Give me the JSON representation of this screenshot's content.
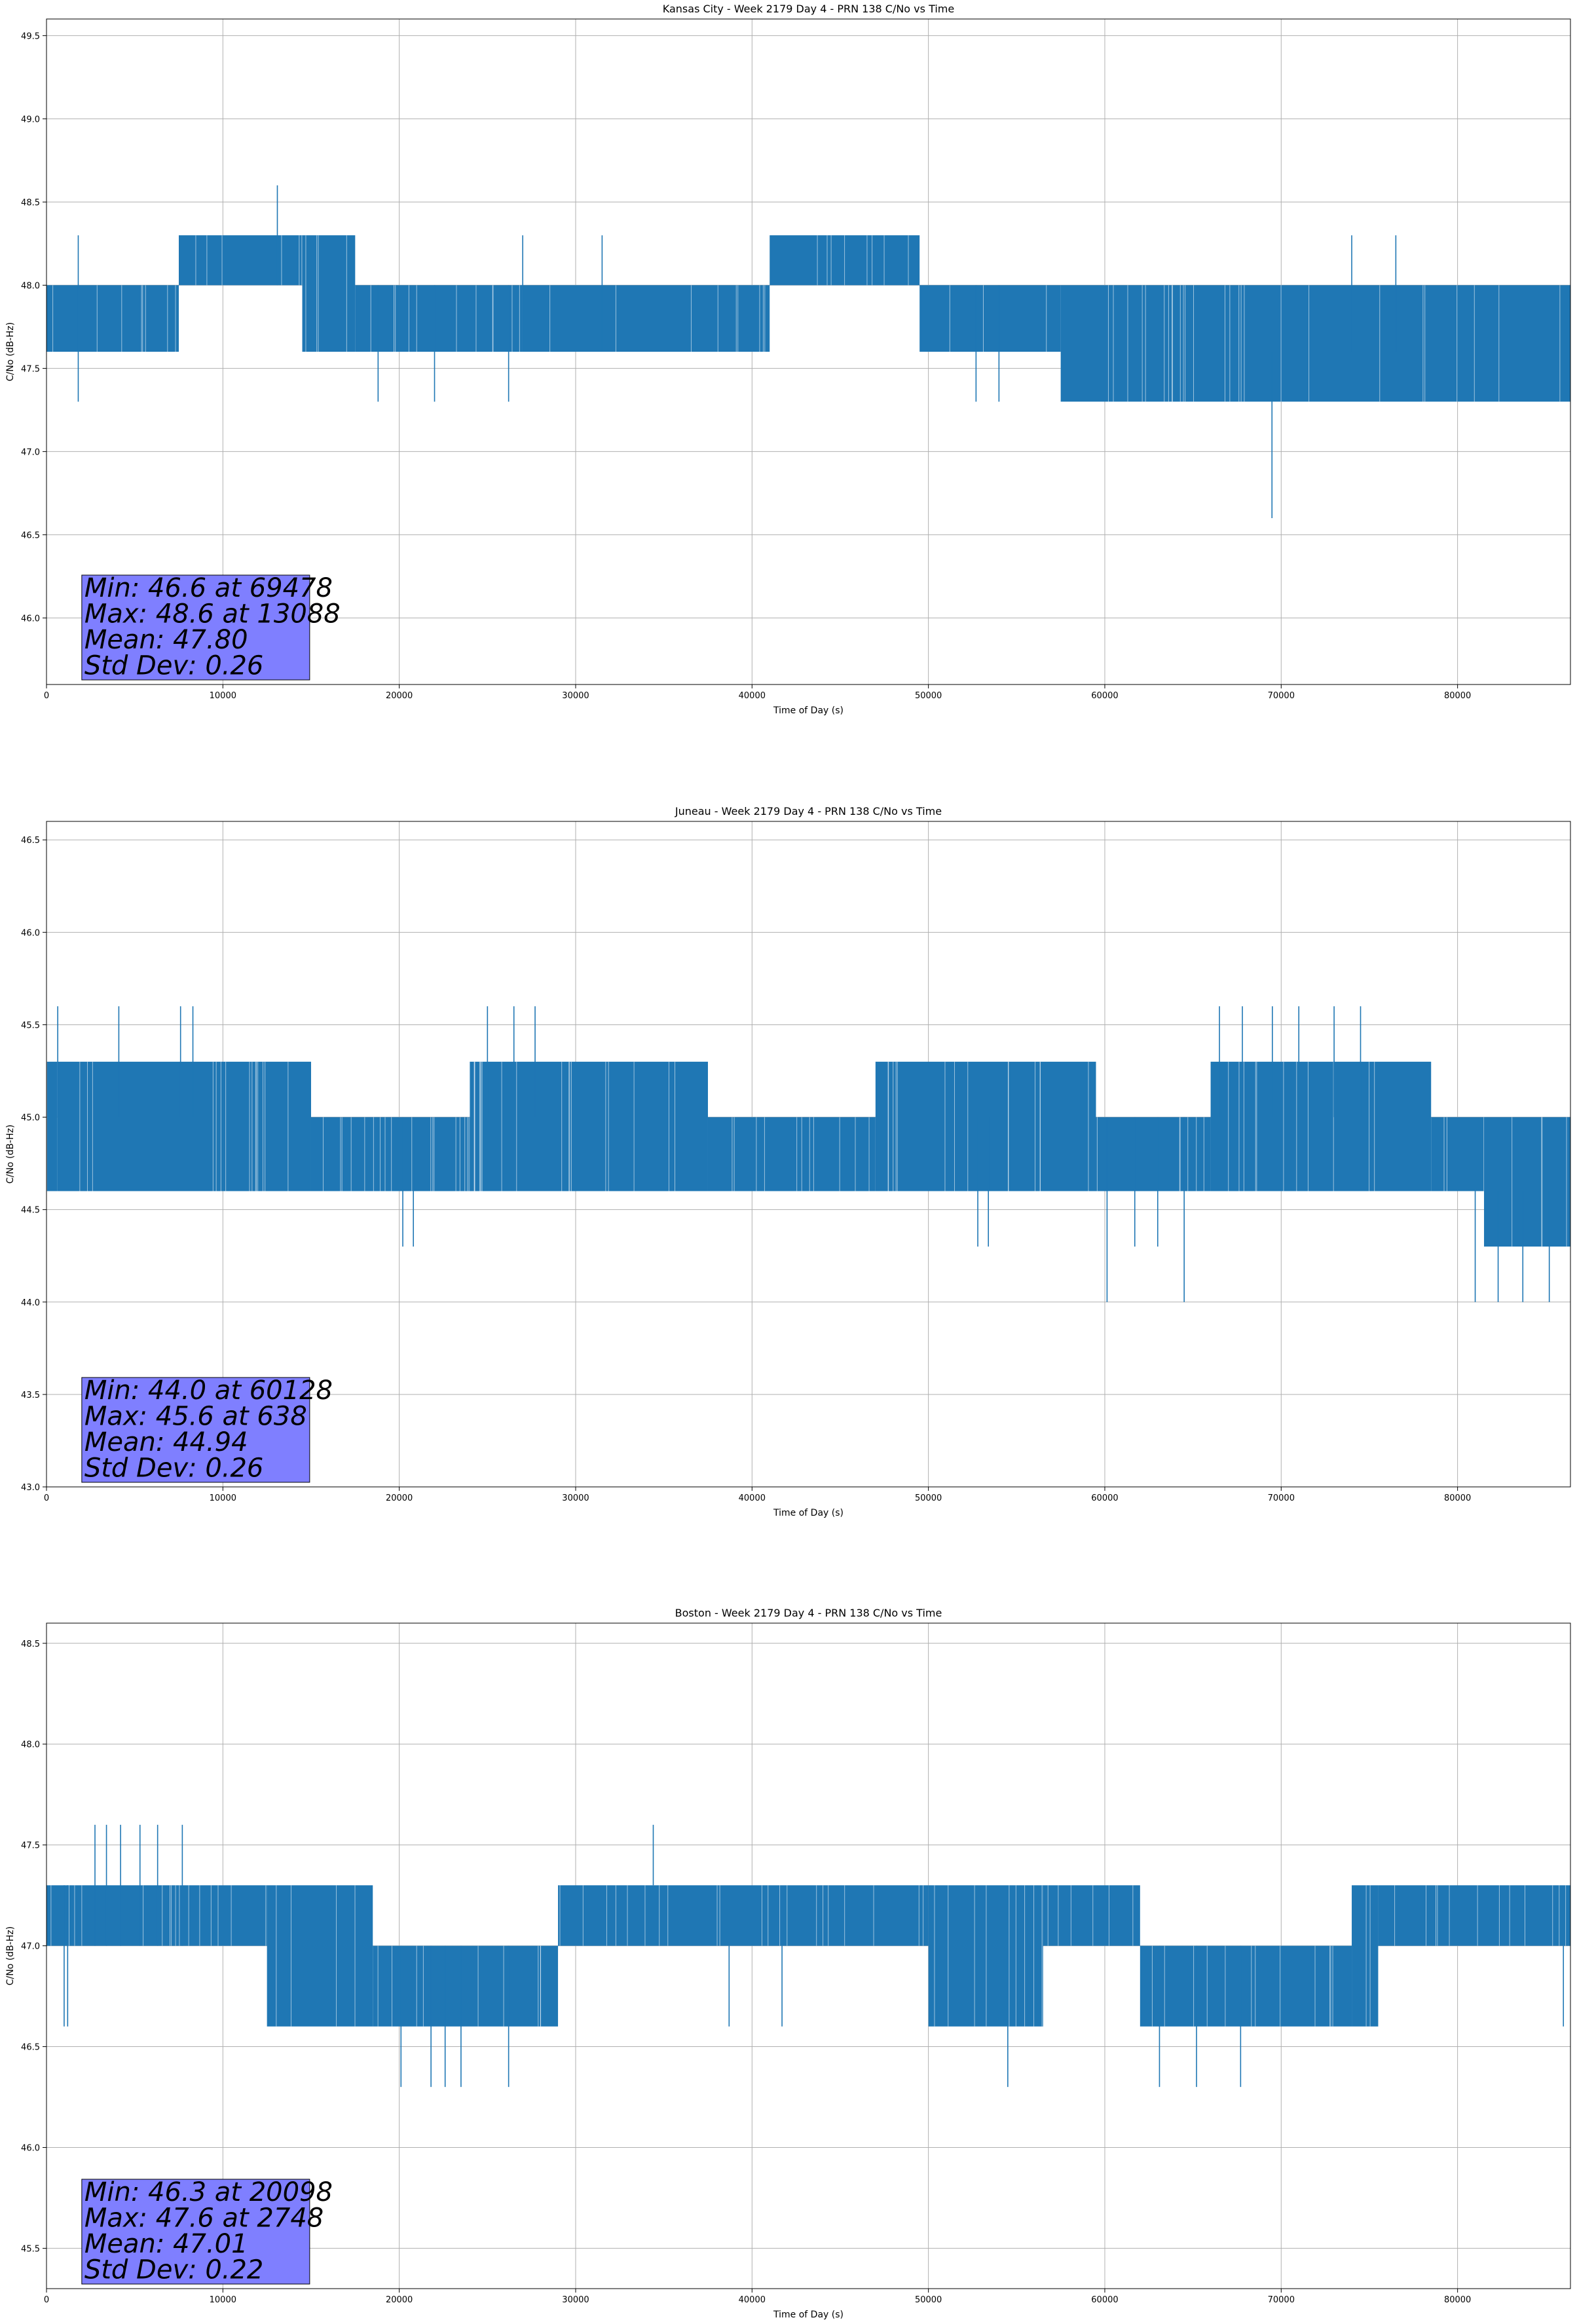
{
  "chart_data": [
    {
      "type": "line",
      "title": "Kansas City - Week 2179 Day 4 - PRN 138 C/No vs Time",
      "xlabel": "Time of Day (s)",
      "ylabel": "C/No (dB-Hz)",
      "xlim": [
        0,
        86400
      ],
      "ylim": [
        45.6,
        49.6
      ],
      "xticks": [
        0,
        10000,
        20000,
        30000,
        40000,
        50000,
        60000,
        70000,
        80000
      ],
      "yticks": [
        "46.0",
        "46.5",
        "47.0",
        "47.5",
        "48.0",
        "48.5",
        "49.0",
        "49.5"
      ],
      "grid": true,
      "color": "#1f77b4",
      "stats": [
        "Min: 46.6 at 69478",
        "Max: 48.6 at 13088",
        "Mean: 47.80",
        "Std Dev: 0.26"
      ],
      "series": [
        {
          "bands": [
            {
              "x0": 0,
              "x1": 7500,
              "lo": 47.6,
              "hi": 48.0
            },
            {
              "x0": 7500,
              "x1": 14500,
              "lo": 48.0,
              "hi": 48.3
            },
            {
              "x0": 14500,
              "x1": 17500,
              "lo": 47.6,
              "hi": 48.3
            },
            {
              "x0": 17500,
              "x1": 41000,
              "lo": 47.6,
              "hi": 48.0
            },
            {
              "x0": 41000,
              "x1": 49500,
              "lo": 48.0,
              "hi": 48.3
            },
            {
              "x0": 49500,
              "x1": 57500,
              "lo": 47.6,
              "hi": 48.0
            },
            {
              "x0": 57500,
              "x1": 86400,
              "lo": 47.3,
              "hi": 48.0
            }
          ],
          "spikes": [
            {
              "x": 1800,
              "lo": 47.3,
              "hi": 48.3
            },
            {
              "x": 13088,
              "lo": 48.0,
              "hi": 48.6
            },
            {
              "x": 18800,
              "lo": 47.3,
              "hi": 48.0
            },
            {
              "x": 22000,
              "lo": 47.3,
              "hi": 48.0
            },
            {
              "x": 26200,
              "lo": 47.3,
              "hi": 48.0
            },
            {
              "x": 27000,
              "lo": 47.6,
              "hi": 48.3
            },
            {
              "x": 31500,
              "lo": 47.6,
              "hi": 48.3
            },
            {
              "x": 52700,
              "lo": 47.3,
              "hi": 48.0
            },
            {
              "x": 54000,
              "lo": 47.3,
              "hi": 48.0
            },
            {
              "x": 69478,
              "lo": 46.6,
              "hi": 47.6
            },
            {
              "x": 74000,
              "lo": 47.6,
              "hi": 48.3
            },
            {
              "x": 76500,
              "lo": 47.6,
              "hi": 48.3
            }
          ]
        }
      ]
    },
    {
      "type": "line",
      "title": "Juneau - Week 2179 Day 4 - PRN 138 C/No vs Time",
      "xlabel": "Time of Day (s)",
      "ylabel": "C/No (dB-Hz)",
      "xlim": [
        0,
        86400
      ],
      "ylim": [
        43.0,
        46.6
      ],
      "xticks": [
        0,
        10000,
        20000,
        30000,
        40000,
        50000,
        60000,
        70000,
        80000
      ],
      "yticks": [
        "43.0",
        "43.5",
        "44.0",
        "44.5",
        "45.0",
        "45.5",
        "46.0",
        "46.5"
      ],
      "grid": true,
      "color": "#1f77b4",
      "stats": [
        "Min: 44.0 at 60128",
        "Max: 45.6 at 638",
        "Mean: 44.94",
        "Std Dev: 0.26"
      ],
      "series": [
        {
          "bands": [
            {
              "x0": 0,
              "x1": 600,
              "lo": 44.6,
              "hi": 45.3
            },
            {
              "x0": 600,
              "x1": 15000,
              "lo": 44.6,
              "hi": 45.3
            },
            {
              "x0": 15000,
              "x1": 24000,
              "lo": 44.6,
              "hi": 45.0
            },
            {
              "x0": 24000,
              "x1": 37500,
              "lo": 44.6,
              "hi": 45.3
            },
            {
              "x0": 37500,
              "x1": 47000,
              "lo": 44.6,
              "hi": 45.0
            },
            {
              "x0": 47000,
              "x1": 59500,
              "lo": 44.6,
              "hi": 45.3
            },
            {
              "x0": 59500,
              "x1": 66000,
              "lo": 44.6,
              "hi": 45.0
            },
            {
              "x0": 66000,
              "x1": 78500,
              "lo": 44.6,
              "hi": 45.3
            },
            {
              "x0": 78500,
              "x1": 81500,
              "lo": 44.6,
              "hi": 45.0
            },
            {
              "x0": 81500,
              "x1": 86400,
              "lo": 44.3,
              "hi": 45.0
            }
          ],
          "spikes": [
            {
              "x": 638,
              "lo": 45.0,
              "hi": 45.6
            },
            {
              "x": 4100,
              "lo": 45.0,
              "hi": 45.6
            },
            {
              "x": 7600,
              "lo": 45.0,
              "hi": 45.6
            },
            {
              "x": 8300,
              "lo": 45.0,
              "hi": 45.6
            },
            {
              "x": 20200,
              "lo": 44.3,
              "hi": 45.0
            },
            {
              "x": 20800,
              "lo": 44.3,
              "hi": 45.0
            },
            {
              "x": 25000,
              "lo": 45.0,
              "hi": 45.6
            },
            {
              "x": 26500,
              "lo": 45.0,
              "hi": 45.6
            },
            {
              "x": 27700,
              "lo": 45.0,
              "hi": 45.6
            },
            {
              "x": 52800,
              "lo": 44.3,
              "hi": 45.0
            },
            {
              "x": 53400,
              "lo": 44.3,
              "hi": 45.0
            },
            {
              "x": 60128,
              "lo": 44.0,
              "hi": 45.0
            },
            {
              "x": 61700,
              "lo": 44.3,
              "hi": 45.0
            },
            {
              "x": 63000,
              "lo": 44.3,
              "hi": 45.0
            },
            {
              "x": 64500,
              "lo": 44.0,
              "hi": 45.0
            },
            {
              "x": 66500,
              "lo": 45.0,
              "hi": 45.6
            },
            {
              "x": 67800,
              "lo": 45.0,
              "hi": 45.6
            },
            {
              "x": 69500,
              "lo": 45.0,
              "hi": 45.6
            },
            {
              "x": 71000,
              "lo": 45.0,
              "hi": 45.6
            },
            {
              "x": 73000,
              "lo": 45.0,
              "hi": 45.6
            },
            {
              "x": 74500,
              "lo": 45.0,
              "hi": 45.6
            },
            {
              "x": 81000,
              "lo": 44.0,
              "hi": 44.6
            },
            {
              "x": 82300,
              "lo": 44.0,
              "hi": 44.6
            },
            {
              "x": 83700,
              "lo": 44.0,
              "hi": 44.6
            },
            {
              "x": 85200,
              "lo": 44.0,
              "hi": 44.6
            }
          ]
        }
      ]
    },
    {
      "type": "line",
      "title": "Boston - Week 2179 Day 4 - PRN 138 C/No vs Time",
      "xlabel": "Time of Day (s)",
      "ylabel": "C/No (dB-Hz)",
      "xlim": [
        0,
        86400
      ],
      "ylim": [
        45.3,
        48.6
      ],
      "xticks": [
        0,
        10000,
        20000,
        30000,
        40000,
        50000,
        60000,
        70000,
        80000
      ],
      "yticks": [
        "45.5",
        "46.0",
        "46.5",
        "47.0",
        "47.5",
        "48.0",
        "48.5"
      ],
      "grid": true,
      "color": "#1f77b4",
      "stats": [
        "Min: 46.3 at 20098",
        "Max: 47.6 at 2748",
        "Mean: 47.01",
        "Std Dev: 0.22"
      ],
      "series": [
        {
          "bands": [
            {
              "x0": 0,
              "x1": 12500,
              "lo": 47.0,
              "hi": 47.3
            },
            {
              "x0": 12500,
              "x1": 18500,
              "lo": 46.6,
              "hi": 47.3
            },
            {
              "x0": 18500,
              "x1": 29000,
              "lo": 46.6,
              "hi": 47.0
            },
            {
              "x0": 29000,
              "x1": 50000,
              "lo": 47.0,
              "hi": 47.3
            },
            {
              "x0": 50000,
              "x1": 56500,
              "lo": 46.6,
              "hi": 47.3
            },
            {
              "x0": 56500,
              "x1": 62000,
              "lo": 47.0,
              "hi": 47.3
            },
            {
              "x0": 62000,
              "x1": 74000,
              "lo": 46.6,
              "hi": 47.0
            },
            {
              "x0": 74000,
              "x1": 75500,
              "lo": 46.6,
              "hi": 47.3
            },
            {
              "x0": 75500,
              "x1": 86400,
              "lo": 47.0,
              "hi": 47.3
            }
          ],
          "spikes": [
            {
              "x": 1000,
              "lo": 46.6,
              "hi": 47.3
            },
            {
              "x": 1200,
              "lo": 46.6,
              "hi": 47.3
            },
            {
              "x": 2748,
              "lo": 47.0,
              "hi": 47.6
            },
            {
              "x": 3400,
              "lo": 47.0,
              "hi": 47.6
            },
            {
              "x": 4200,
              "lo": 47.0,
              "hi": 47.6
            },
            {
              "x": 5300,
              "lo": 47.0,
              "hi": 47.6
            },
            {
              "x": 6300,
              "lo": 47.0,
              "hi": 47.6
            },
            {
              "x": 7700,
              "lo": 47.0,
              "hi": 47.6
            },
            {
              "x": 20098,
              "lo": 46.3,
              "hi": 47.0
            },
            {
              "x": 21800,
              "lo": 46.3,
              "hi": 47.0
            },
            {
              "x": 22600,
              "lo": 46.3,
              "hi": 47.0
            },
            {
              "x": 23500,
              "lo": 46.3,
              "hi": 47.0
            },
            {
              "x": 26200,
              "lo": 46.3,
              "hi": 47.0
            },
            {
              "x": 34400,
              "lo": 47.3,
              "hi": 47.6
            },
            {
              "x": 38700,
              "lo": 46.6,
              "hi": 47.0
            },
            {
              "x": 41700,
              "lo": 46.6,
              "hi": 47.0
            },
            {
              "x": 54500,
              "lo": 46.3,
              "hi": 47.0
            },
            {
              "x": 63100,
              "lo": 46.3,
              "hi": 47.0
            },
            {
              "x": 65200,
              "lo": 46.3,
              "hi": 47.0
            },
            {
              "x": 67700,
              "lo": 46.3,
              "hi": 47.0
            },
            {
              "x": 86000,
              "lo": 46.6,
              "hi": 47.0
            }
          ]
        }
      ]
    }
  ]
}
